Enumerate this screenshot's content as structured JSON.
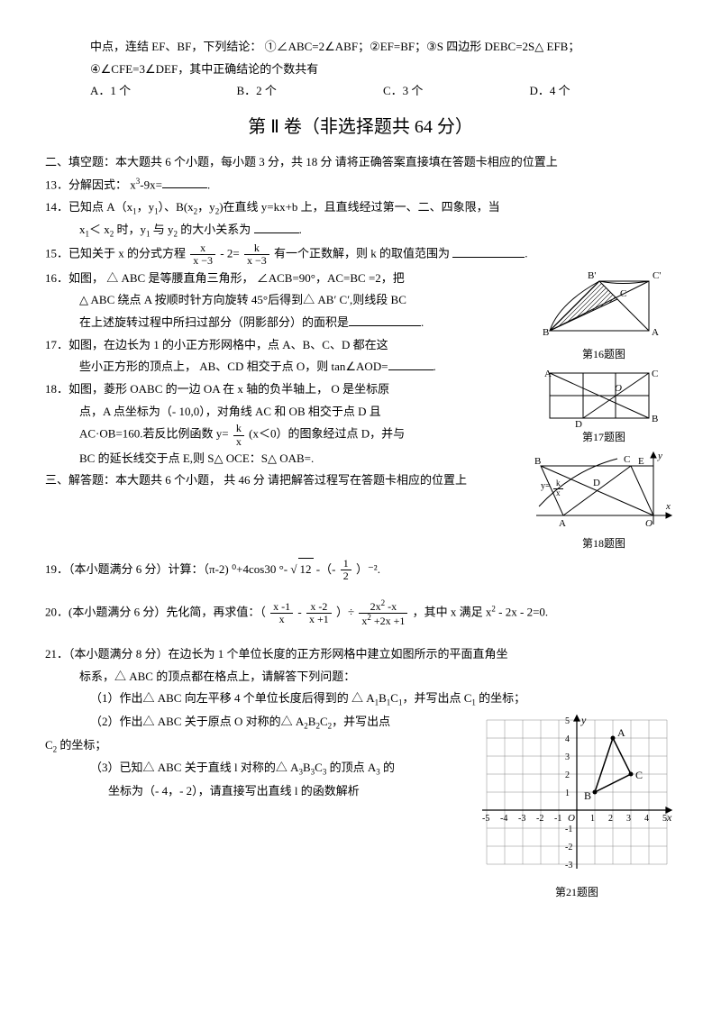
{
  "cont": {
    "line1": "中点，连结 EF、BF，下列结论：  ①∠ABC=2∠ABF；②EF=BF；③S 四边形 DEBC=2S△ EFB；",
    "line2": "④∠CFE=3∠DEF，其中正确结论的个数共有",
    "optA": "A．1 个",
    "optB": "B．2 个",
    "optC": "C．3 个",
    "optD": "D．4 个"
  },
  "section2_title": "第 Ⅱ 卷（非选择题共   64 分）",
  "fill_heading": "二、填空题：本大题共   6 个小题，每小题   3 分，共  18 分    请将正确答案直接填在答题卡相应的位置上",
  "q13": {
    "pre": "13．分解因式：  x",
    "sup": "3",
    "mid": "-9x=",
    "post": "."
  },
  "q14": {
    "l1a": "14．已知点  A（x",
    "s1": "1",
    "l1b": "，y",
    "s2": "1",
    "l1c": "）、B(x",
    "s3": "2",
    "l1d": "，y",
    "s4": "2",
    "l1e": ")在直线 y=kx+b  上，且直线经过第一、二、四象限，当",
    "l2a": "x",
    "s5": "1",
    "l2b": "＜ x",
    "s6": "2",
    "l2c": " 时，y",
    "s7": "1",
    "l2d": " 与 y",
    "s8": "2",
    "l2e": " 的大小关系为"
  },
  "q15": {
    "a": "15．已知关于  x 的分式方程",
    "b": "- 2=",
    "c": "有一个正数解，则   k 的取值范围为",
    "f1n": "x",
    "f1d": "x −3",
    "f2n": "k",
    "f2d": "x −3"
  },
  "q16": {
    "l1": "16．如图， △ ABC 是等腰直角三角形，  ∠ACB=90°，AC=BC =2，把",
    "l2": "△ ABC 绕点 A 按顺时针方向旋转   45°后得到△ AB′ C′,则线段 BC",
    "l3": "在上述旋转过程中所扫过部分（阴影部分）的面积是",
    "cap": "第16题图"
  },
  "q17": {
    "l1": "17．如图，在边长为  1 的小正方形网格中，点   A、B、C、D 都在这",
    "l2": "些小正方形的顶点上， AB、CD 相交于点 O，则 tan∠AOD=",
    "cap": "第17题图"
  },
  "q18": {
    "l1": "18．如图，菱形  OABC 的一边 OA 在 x 轴的负半轴上，  O 是坐标原",
    "l2": "点，A 点坐标为（-  10,0），对角线  AC 和 OB 相交于点  D 且",
    "l3a": "AC·OB=160.若反比例函数   y=",
    "fn": "k",
    "fd": "x",
    "l3b": "(x＜0）的图象经过点  D，并与",
    "l4": "BC 的延长线交于点   E,则 S△ OCE：S△ OAB=.",
    "cap": "第18题图"
  },
  "solve_heading": "三、解答题：本大题共  6 个小题， 共 46 分    请把解答过程写在答题卡相应的位置上",
  "q19": {
    "a": "19．（本小题满分  6 分）计算：（π-2) ⁰+4cos30 °-",
    "sqrt": "12",
    "b": "-（-",
    "fn": "1",
    "fd": "2",
    "c": "）⁻²."
  },
  "q20": {
    "a": "20．(本小题满分 6 分）先化简，再求值：（",
    "f1n": "x -1",
    "f1d": "x",
    "mid1": "-",
    "f2n": "x -2",
    "f2d": "x +1",
    "mid2": "）÷",
    "f3n_a": "2x",
    "f3n_sup": "2",
    "f3n_b": " -x",
    "f3d_a": "x",
    "f3d_sup": "2",
    "f3d_b": " +2x +1",
    "b": "，其中 x 满足 x",
    "bsup": "2",
    "c": " - 2x - 2=0."
  },
  "q21": {
    "l1": "21．（本小题满分  8 分）在边长为  1 个单位长度的正方形网格中建立如图所示的平面直角坐",
    "l2": "标系，△ ABC 的顶点都在格点上，请解答下列问题：",
    "p1a": "（1）作出△ ABC 向左平移  4 个单位长度后得到的   △ A",
    "s1": "1",
    "p1b": "B",
    "s2": "1",
    "p1c": "C",
    "s3": "1",
    "p1d": "，并写出点  C",
    "s4": "1",
    "p1e": " 的坐标；",
    "p2a": "（2）作出△ ABC 关于原点  O 对称的△ A",
    "s5": "2",
    "p2b": "B",
    "s6": "2",
    "p2c": "C",
    "s7": "2",
    "p2d": "，并写出点",
    "c2a": "C",
    "s8": "2",
    "c2b": " 的坐标；",
    "p3a": "（3）已知△ ABC 关于直线  l 对称的△ A",
    "s9": "3",
    "p3b": "B",
    "s10": "3",
    "p3c": "C",
    "s11": "3",
    "p3d": " 的顶点  A",
    "s12": "3",
    "p3e": " 的",
    "p4": "坐标为（- 4，- 2），请直接写出直线   l 的函数解析",
    "cap": "第21题图"
  },
  "fig16": {
    "B": "B",
    "Bp": "B'",
    "C": "C",
    "Cp": "C'",
    "A": "A"
  },
  "fig17": {
    "A": "A",
    "B": "B",
    "C": "C",
    "D": "D",
    "O": "O"
  },
  "fig18": {
    "A": "A",
    "B": "B",
    "C": "C",
    "D": "D",
    "E": "E",
    "O": "O",
    "x": "x",
    "y": "y",
    "yk": "y=",
    "kn": "k",
    "kd": "x"
  },
  "fig21": {
    "A": "A",
    "B": "B",
    "C": "C",
    "O": "O",
    "x": "x",
    "y": "y",
    "xl": [
      "-5",
      "-4",
      "-3",
      "-2",
      "-1",
      "1",
      "2",
      "3",
      "4",
      "5"
    ],
    "yl": [
      "5",
      "4",
      "3",
      "2",
      "1",
      "-1",
      "-2",
      "-3"
    ]
  }
}
